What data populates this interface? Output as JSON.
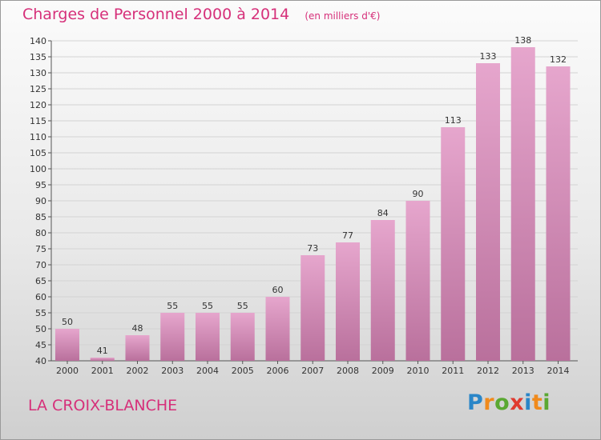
{
  "chart_data": {
    "type": "bar",
    "title": "Charges de Personnel 2000 à 2014",
    "unit_note": "(en milliers d'€)",
    "categories": [
      "2000",
      "2001",
      "2002",
      "2003",
      "2004",
      "2005",
      "2006",
      "2007",
      "2008",
      "2009",
      "2010",
      "2011",
      "2012",
      "2013",
      "2014"
    ],
    "values": [
      50,
      41,
      48,
      55,
      55,
      55,
      60,
      73,
      77,
      84,
      90,
      113,
      133,
      138,
      132
    ],
    "ylim": [
      40,
      140
    ],
    "yticks": [
      40,
      45,
      50,
      55,
      60,
      65,
      70,
      75,
      80,
      85,
      90,
      95,
      100,
      105,
      110,
      115,
      120,
      125,
      130,
      135,
      140
    ],
    "grid": true,
    "bar_color": "#d98cb9",
    "title_color": "#d6307a"
  },
  "footer": {
    "place": "LA CROIX-BLANCHE",
    "logo": "Proxiti"
  },
  "logo_colors": [
    "#2a86c8",
    "#f08a1c",
    "#5aa832",
    "#e03a2f",
    "#2a86c8",
    "#f08a1c",
    "#5aa832"
  ]
}
